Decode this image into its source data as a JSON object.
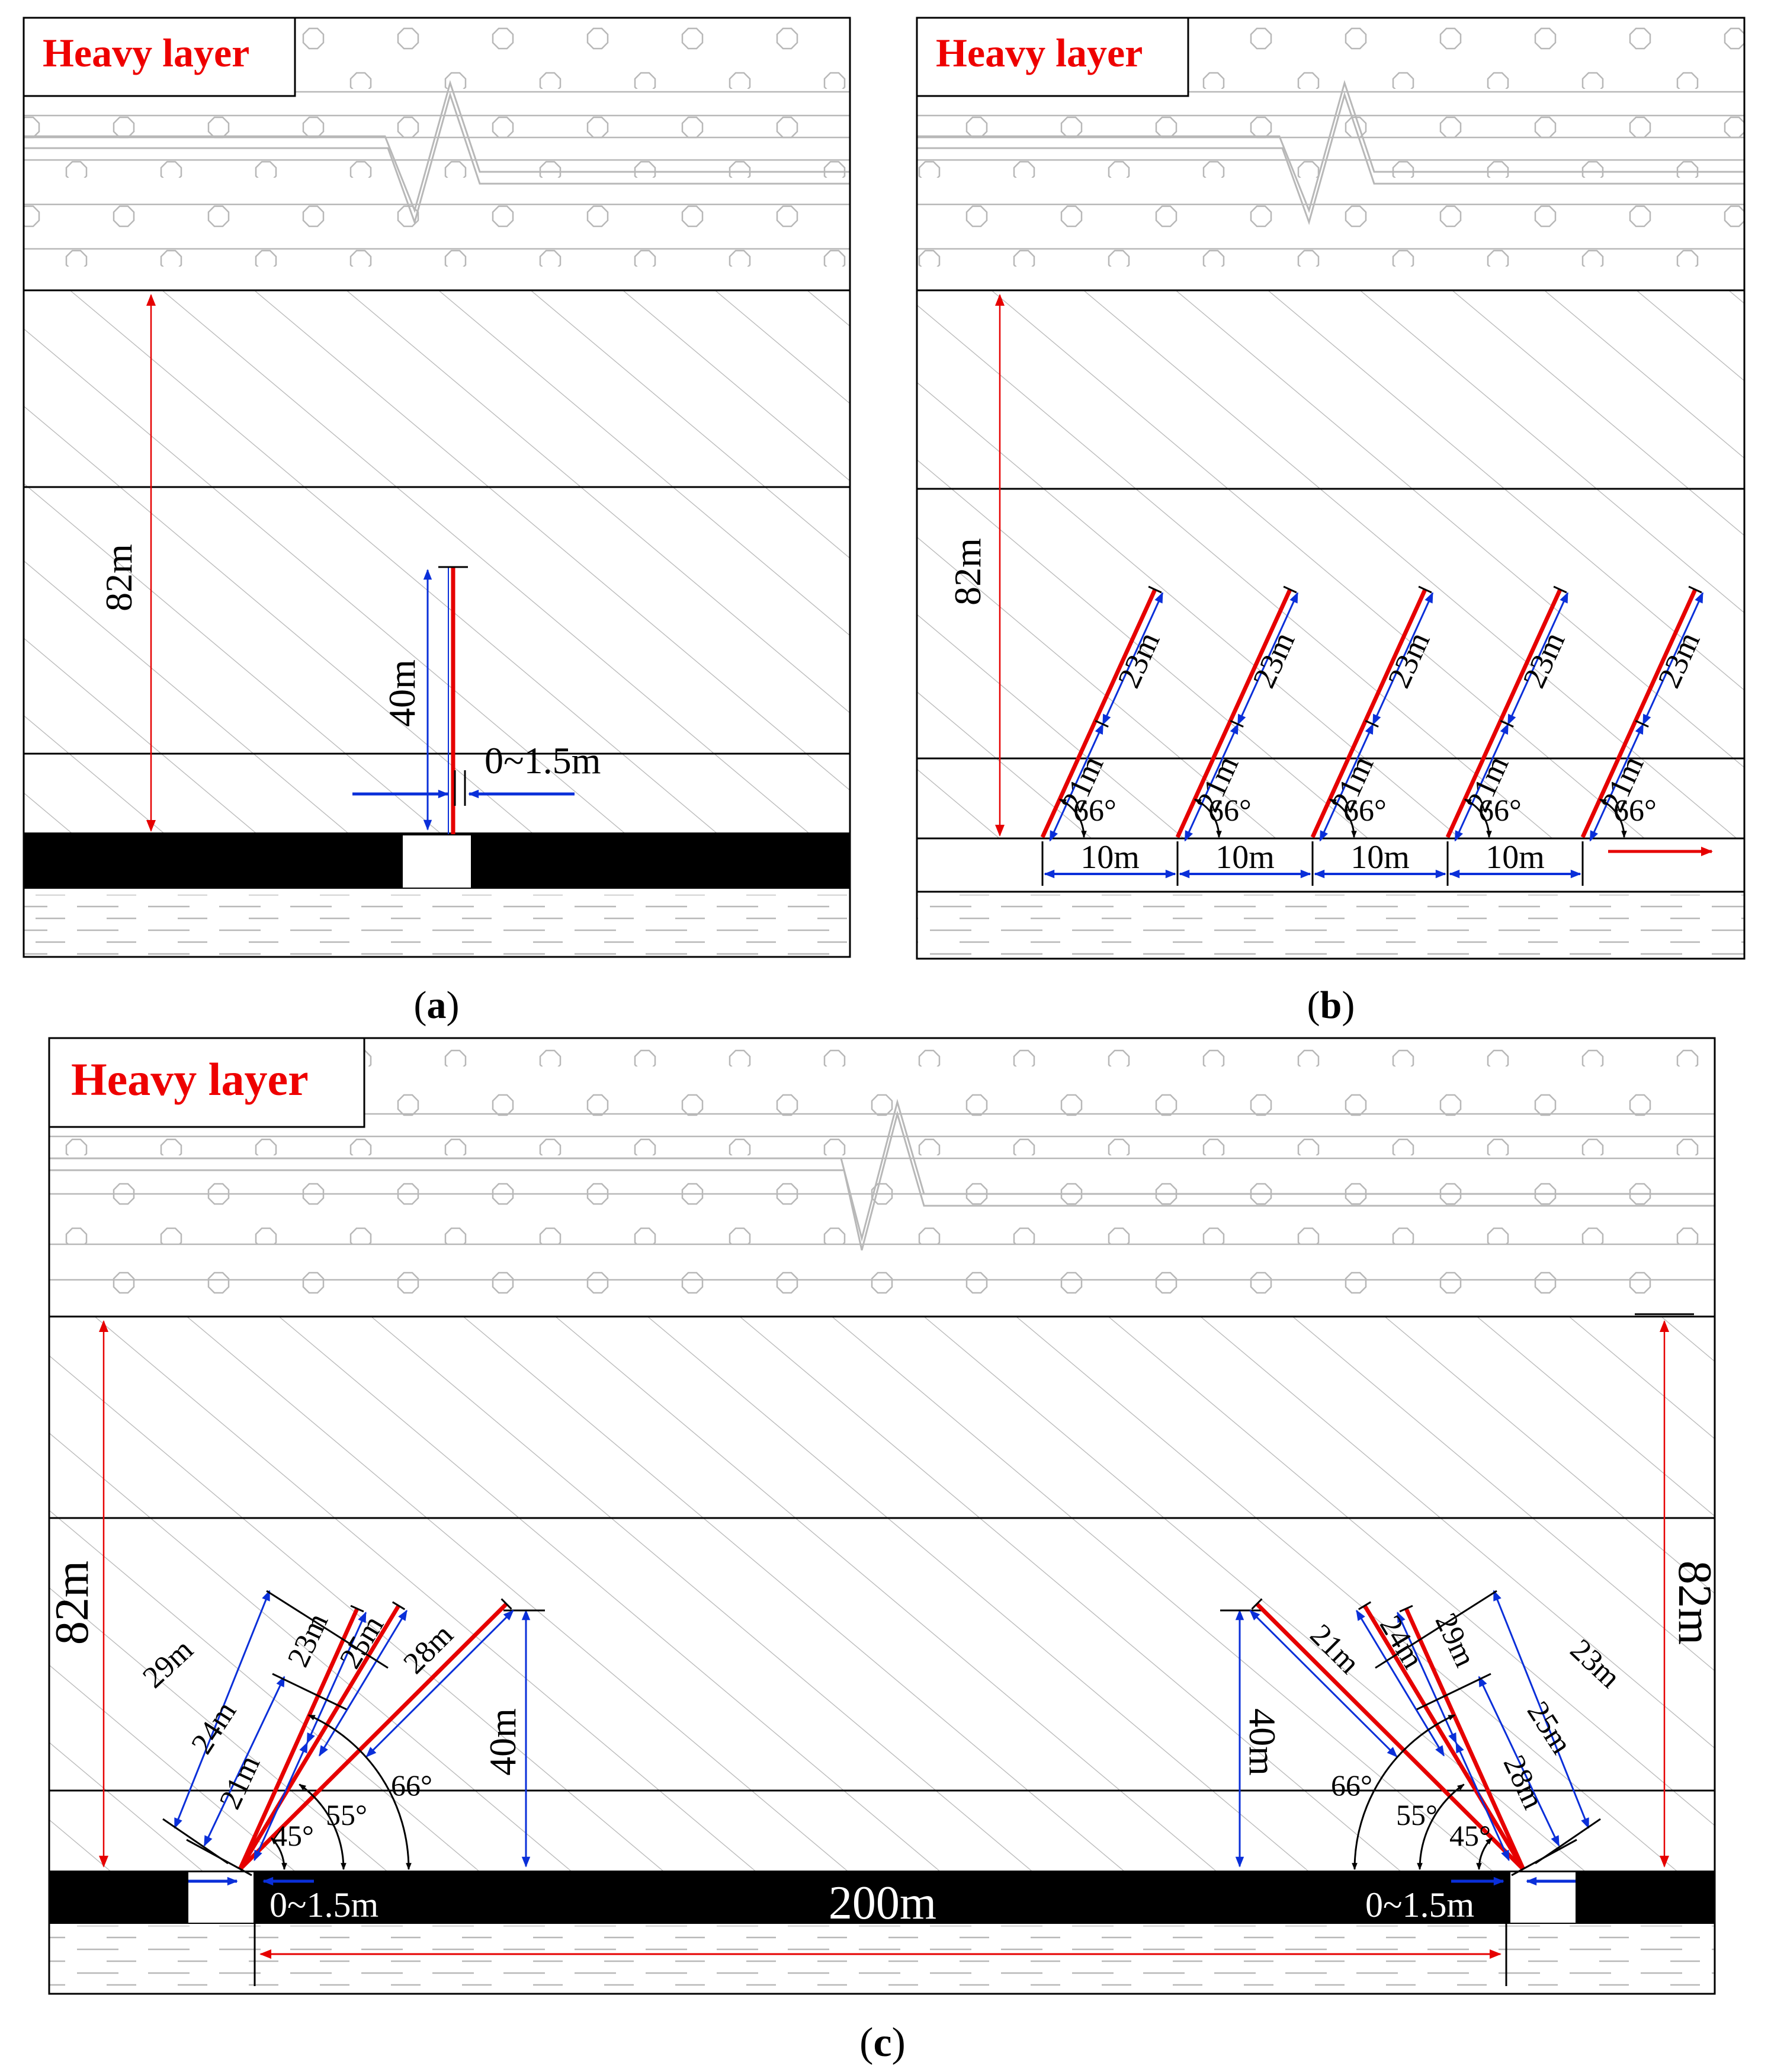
{
  "colors": {
    "accent_red": "#e60000",
    "dimension_blue": "#0a2fd9",
    "seam_black": "#000000",
    "hatch_gray": "#b4b4b4",
    "heavy_label_red": "#ee0000"
  },
  "panel_a": {
    "caption_letter": "a",
    "heavy_label": "Heavy layer",
    "dist_label": "82m",
    "hole_length": "40m",
    "offset_label": "0~1.5m"
  },
  "panel_b": {
    "caption_letter": "b",
    "heavy_label": "Heavy layer",
    "dist_label": "82m",
    "seg_lower": "21m",
    "seg_upper": "23m",
    "angle": "66°",
    "spacing": "10m",
    "hole_count": 5
  },
  "panel_c": {
    "caption_letter": "c",
    "heavy_label": "Heavy layer",
    "dist_label_left": "82m",
    "dist_label_right": "82m",
    "height_left": "40m",
    "height_right": "40m",
    "offset_left": "0~1.5m",
    "offset_right": "0~1.5m",
    "span": "200m",
    "angles": [
      "45°",
      "55°",
      "66°"
    ],
    "left_fan_labels": [
      "21m",
      "24m",
      "29m",
      "23m",
      "25m",
      "28m"
    ],
    "right_fan_labels": [
      "28m",
      "25m",
      "23m",
      "29m",
      "24m",
      "21m"
    ]
  }
}
